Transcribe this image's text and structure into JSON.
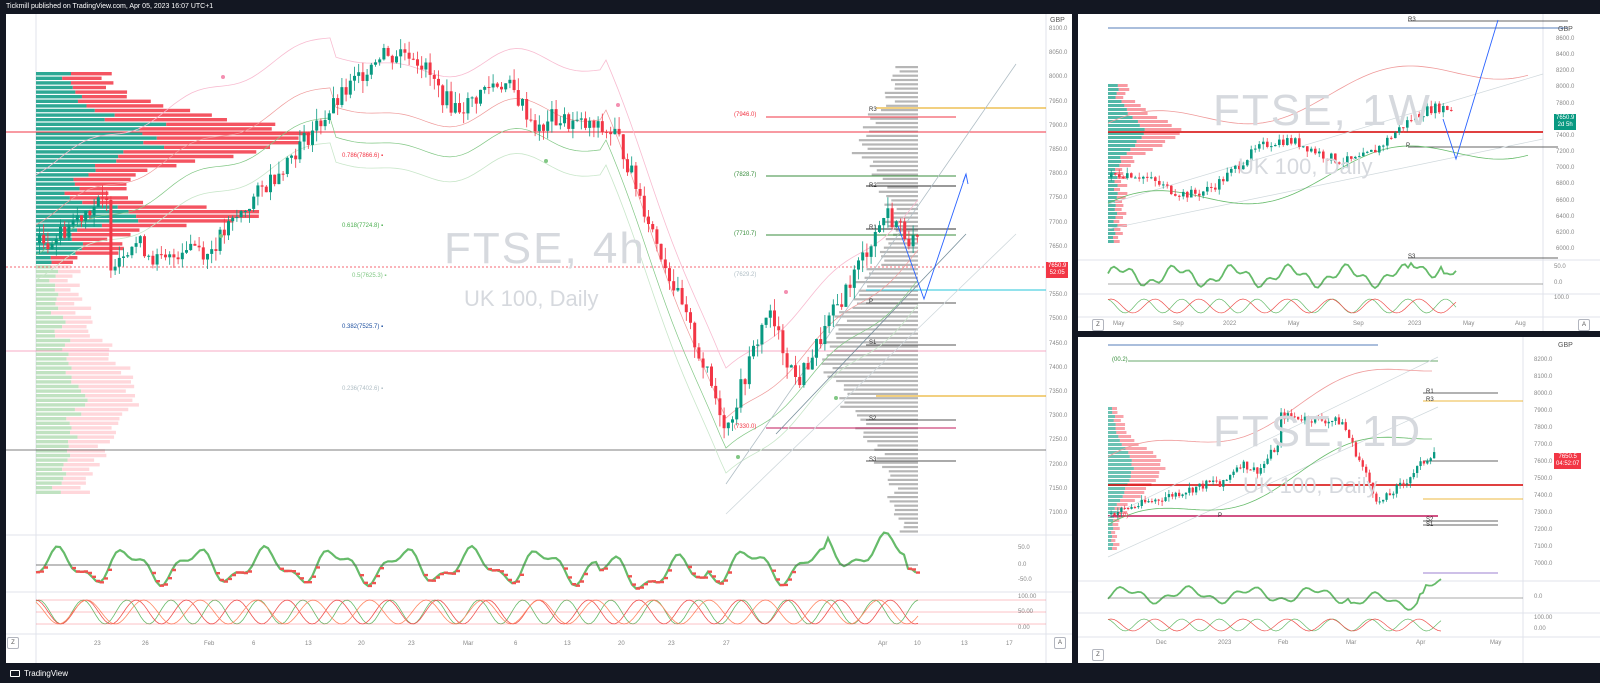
{
  "header": {
    "publish_line": "Tickmill published on TradingView.com, Apr 05, 2023 16:07 UTC+1"
  },
  "footer": {
    "brand": "TradingView"
  },
  "colors": {
    "up": "#089981",
    "down": "#f23645",
    "bg": "#131722"
  },
  "charts": {
    "main": {
      "title": "FTSE, 4h",
      "subtitle": "UK 100, Daily",
      "currency": "GBP",
      "price_badge": "7650.9",
      "price_badge_time": "52:05",
      "x_labels": [
        "23",
        "26",
        "Feb",
        "6",
        "13",
        "20",
        "23",
        "Mar",
        "6",
        "13",
        "20",
        "23",
        "27",
        "Apr",
        "10",
        "13",
        "17"
      ],
      "y_labels": [
        "8100.0",
        "8050.0",
        "8000.0",
        "7950.0",
        "7900.0",
        "7850.0",
        "7800.0",
        "7750.0",
        "7700.0",
        "7650.0",
        "7600.0",
        "7550.0",
        "7500.0",
        "7450.0",
        "7400.0",
        "7350.0",
        "7300.0",
        "7250.0",
        "7200.0",
        "7150.0",
        "7100.0"
      ],
      "fib_levels": [
        {
          "label": "0.786(7866.6)",
          "color": "#f23645"
        },
        {
          "label": "0.618(7724.8)",
          "color": "#4caf50"
        },
        {
          "label": "0.5(7625.3)",
          "color": "#81c784"
        },
        {
          "label": "0.382(7525.7)",
          "color": "#1e50a0"
        },
        {
          "label": "0.236(7402.6)",
          "color": "#b0bec5"
        }
      ],
      "level_labels": [
        {
          "label": "(7946.0)",
          "color": "#f23645"
        },
        {
          "label": "(7828.7)",
          "color": "#388e3c"
        },
        {
          "label": "(7710.7)",
          "color": "#388e3c"
        },
        {
          "label": "(7629.2)",
          "color": "#b0bec5"
        },
        {
          "label": "(7330.0)",
          "color": "#f23645"
        }
      ],
      "pivots": [
        "R3",
        "R2",
        "R1",
        "P",
        "S1",
        "S2",
        "S3"
      ],
      "osc_labels": [
        "50.0",
        "0.0",
        "-50.0",
        "100.00",
        "50.00",
        "0.00"
      ]
    },
    "weekly": {
      "title": "FTSE, 1W",
      "subtitle": "UK 100, Daily",
      "currency": "GBP",
      "price_badge": "7650.9",
      "price_badge_time": "2d 5h",
      "x_labels": [
        "May",
        "Sep",
        "2022",
        "May",
        "Sep",
        "2023",
        "May",
        "Aug"
      ],
      "y_labels": [
        "8600.0",
        "8400.0",
        "8200.0",
        "8000.0",
        "7800.0",
        "7600.0",
        "7400.0",
        "7200.0",
        "7000.0",
        "6800.0",
        "6600.0",
        "6400.0",
        "6200.0",
        "6000.0"
      ],
      "pivots": [
        "R3",
        "P",
        "S3"
      ],
      "osc_labels": [
        "50.0",
        "0.0",
        "100.0"
      ]
    },
    "daily": {
      "title": "FTSE, 1D",
      "subtitle": "UK 100, Daily",
      "currency": "GBP",
      "price_badge": "7650.5",
      "price_badge_time": "04:52:07",
      "x_labels": [
        "Dec",
        "2023",
        "Feb",
        "Mar",
        "Apr",
        "May"
      ],
      "y_labels": [
        "8200.0",
        "8100.0",
        "8000.0",
        "7900.0",
        "7800.0",
        "7700.0",
        "7600.0",
        "7500.0",
        "7400.0",
        "7300.0",
        "7200.0",
        "7100.0",
        "7000.0"
      ],
      "pivots": [
        "R1",
        "R3",
        "S2",
        "S1",
        "P"
      ],
      "fib_top": "(00.2)",
      "fib_left": "0.0)",
      "osc_labels": [
        "0.0",
        "100.00",
        "0.00"
      ]
    }
  }
}
